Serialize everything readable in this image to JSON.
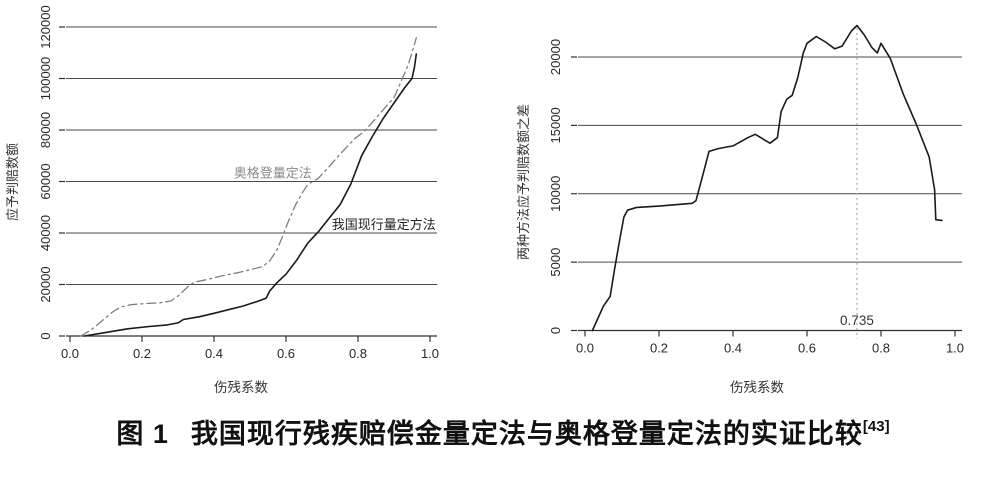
{
  "caption": {
    "figure_label": "图 1",
    "title": "我国现行残疾赔偿金量定法与奥格登量定法的实证比较",
    "reference_superscript": "[43]"
  },
  "colors": {
    "curve_solid": "#1a1a1a",
    "curve_dashdot": "#7d7d7d",
    "gridline": "#4a4a4a",
    "axis": "#333333",
    "tick_text": "#2a2a2a",
    "vline_dotted": "#b0b0b0"
  },
  "chart_data": [
    {
      "type": "line",
      "title": "",
      "xlabel": "伤残系数",
      "ylabel": "应予判赔数额",
      "xlim": [
        0.0,
        1.0
      ],
      "ylim": [
        0,
        120000
      ],
      "grid": "horizontal",
      "legend_position": "inline-labels",
      "x_ticks": [
        0.0,
        0.2,
        0.4,
        0.6,
        0.8,
        1.0
      ],
      "x_tick_labels": [
        "0.0",
        "0.2",
        "0.4",
        "0.6",
        "0.8",
        "1.0"
      ],
      "y_ticks": [
        0,
        20000,
        40000,
        60000,
        80000,
        100000,
        120000
      ],
      "y_tick_labels": [
        "0",
        "20000",
        "40000",
        "60000",
        "80000",
        "100000",
        "120000"
      ],
      "series": [
        {
          "name": "奥格登量定法",
          "style": "dashdot",
          "color": "#7d7d7d",
          "label_pos": {
            "x": 0.455,
            "y": 61500
          },
          "points": [
            [
              0.03,
              0
            ],
            [
              0.06,
              2500
            ],
            [
              0.08,
              4800
            ],
            [
              0.1,
              7200
            ],
            [
              0.12,
              9500
            ],
            [
              0.14,
              11200
            ],
            [
              0.17,
              12200
            ],
            [
              0.21,
              12600
            ],
            [
              0.25,
              12900
            ],
            [
              0.28,
              13600
            ],
            [
              0.305,
              16000
            ],
            [
              0.315,
              17500
            ],
            [
              0.33,
              19400
            ],
            [
              0.345,
              20900
            ],
            [
              0.38,
              21900
            ],
            [
              0.42,
              23300
            ],
            [
              0.46,
              24400
            ],
            [
              0.5,
              25700
            ],
            [
              0.535,
              27000
            ],
            [
              0.555,
              29200
            ],
            [
              0.575,
              33500
            ],
            [
              0.59,
              38500
            ],
            [
              0.605,
              44000
            ],
            [
              0.625,
              50500
            ],
            [
              0.645,
              55500
            ],
            [
              0.66,
              58800
            ],
            [
              0.69,
              61300
            ],
            [
              0.72,
              65800
            ],
            [
              0.75,
              70600
            ],
            [
              0.79,
              76500
            ],
            [
              0.82,
              79800
            ],
            [
              0.85,
              84600
            ],
            [
              0.88,
              89500
            ],
            [
              0.9,
              92500
            ],
            [
              0.92,
              99000
            ],
            [
              0.94,
              105500
            ],
            [
              0.952,
              111000
            ],
            [
              0.962,
              115800
            ]
          ]
        },
        {
          "name": "我国现行量定方法",
          "style": "solid",
          "color": "#1a1a1a",
          "label_pos": {
            "x": 0.727,
            "y": 41500
          },
          "points": [
            [
              0.04,
              0
            ],
            [
              0.1,
              1400
            ],
            [
              0.16,
              2800
            ],
            [
              0.22,
              3700
            ],
            [
              0.27,
              4300
            ],
            [
              0.3,
              5100
            ],
            [
              0.315,
              6400
            ],
            [
              0.36,
              7500
            ],
            [
              0.4,
              8800
            ],
            [
              0.44,
              10200
            ],
            [
              0.48,
              11600
            ],
            [
              0.52,
              13400
            ],
            [
              0.545,
              14700
            ],
            [
              0.555,
              17500
            ],
            [
              0.575,
              20700
            ],
            [
              0.6,
              24000
            ],
            [
              0.63,
              29500
            ],
            [
              0.66,
              36000
            ],
            [
              0.69,
              40500
            ],
            [
              0.72,
              45800
            ],
            [
              0.75,
              51000
            ],
            [
              0.78,
              59000
            ],
            [
              0.81,
              70000
            ],
            [
              0.84,
              77500
            ],
            [
              0.87,
              84500
            ],
            [
              0.9,
              90500
            ],
            [
              0.93,
              96500
            ],
            [
              0.95,
              100000
            ],
            [
              0.957,
              104500
            ],
            [
              0.962,
              109500
            ]
          ]
        }
      ]
    },
    {
      "type": "line",
      "title": "",
      "xlabel": "伤残系数",
      "ylabel": "两种方法应予判赔数额之差",
      "xlim": [
        0.0,
        1.0
      ],
      "ylim": [
        0,
        22500
      ],
      "grid": "horizontal",
      "x_ticks": [
        0.0,
        0.2,
        0.4,
        0.6,
        0.8,
        1.0
      ],
      "x_tick_labels": [
        "0.0",
        "0.2",
        "0.4",
        "0.6",
        "0.8",
        "1.0"
      ],
      "y_ticks": [
        0,
        5000,
        10000,
        15000,
        20000
      ],
      "y_tick_labels": [
        "0",
        "5000",
        "10000",
        "15000",
        "20000"
      ],
      "vline": {
        "x": 0.735,
        "label": "0.735",
        "label_x": 0.735,
        "label_y": 400
      },
      "series": [
        {
          "name": "",
          "style": "solid",
          "color": "#1a1a1a",
          "points": [
            [
              0.02,
              0
            ],
            [
              0.05,
              1800
            ],
            [
              0.068,
              2500
            ],
            [
              0.08,
              4500
            ],
            [
              0.095,
              6800
            ],
            [
              0.105,
              8300
            ],
            [
              0.115,
              8800
            ],
            [
              0.14,
              9000
            ],
            [
              0.2,
              9100
            ],
            [
              0.29,
              9300
            ],
            [
              0.3,
              9500
            ],
            [
              0.315,
              11000
            ],
            [
              0.335,
              13100
            ],
            [
              0.36,
              13300
            ],
            [
              0.4,
              13500
            ],
            [
              0.44,
              14100
            ],
            [
              0.46,
              14350
            ],
            [
              0.5,
              13700
            ],
            [
              0.52,
              14100
            ],
            [
              0.53,
              16000
            ],
            [
              0.545,
              16900
            ],
            [
              0.56,
              17200
            ],
            [
              0.575,
              18500
            ],
            [
              0.59,
              20300
            ],
            [
              0.6,
              21000
            ],
            [
              0.625,
              21500
            ],
            [
              0.65,
              21100
            ],
            [
              0.675,
              20600
            ],
            [
              0.695,
              20800
            ],
            [
              0.72,
              21900
            ],
            [
              0.735,
              22300
            ],
            [
              0.755,
              21600
            ],
            [
              0.775,
              20700
            ],
            [
              0.79,
              20300
            ],
            [
              0.8,
              21000
            ],
            [
              0.825,
              19900
            ],
            [
              0.86,
              17300
            ],
            [
              0.895,
              15100
            ],
            [
              0.93,
              12700
            ],
            [
              0.945,
              10300
            ],
            [
              0.948,
              8100
            ],
            [
              0.965,
              8050
            ]
          ]
        }
      ]
    }
  ]
}
